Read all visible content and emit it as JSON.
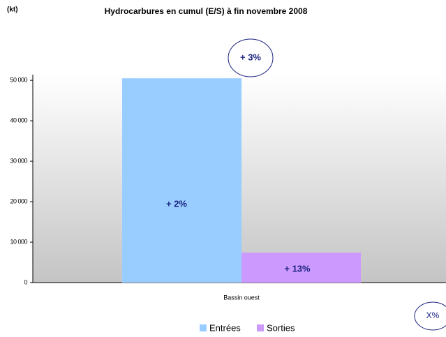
{
  "chart_data": {
    "type": "bar",
    "title": "Hydrocarbures en cumul (E/S) à fin novembre  2008",
    "unit_label": "(kt)",
    "categories": [
      "Bassin ouest"
    ],
    "series": [
      {
        "name": "Entrées",
        "color": "#99ccff",
        "values": [
          50500
        ]
      },
      {
        "name": "Sorties",
        "color": "#cc99ff",
        "values": [
          7400
        ]
      }
    ],
    "ylim": [
      0,
      51400
    ],
    "yticks": [
      0,
      {
        "value": 10000,
        "label": "10 000"
      },
      {
        "value": 20000,
        "label": "20 000"
      },
      {
        "value": 30000,
        "label": "30 000"
      },
      {
        "value": 40000,
        "label": "40 000"
      },
      {
        "value": 50000,
        "label": "50 000"
      }
    ],
    "annotations": [
      "+ 3%",
      "+ 2%",
      "+ 13%",
      "X%"
    ],
    "legend": "bottom"
  }
}
